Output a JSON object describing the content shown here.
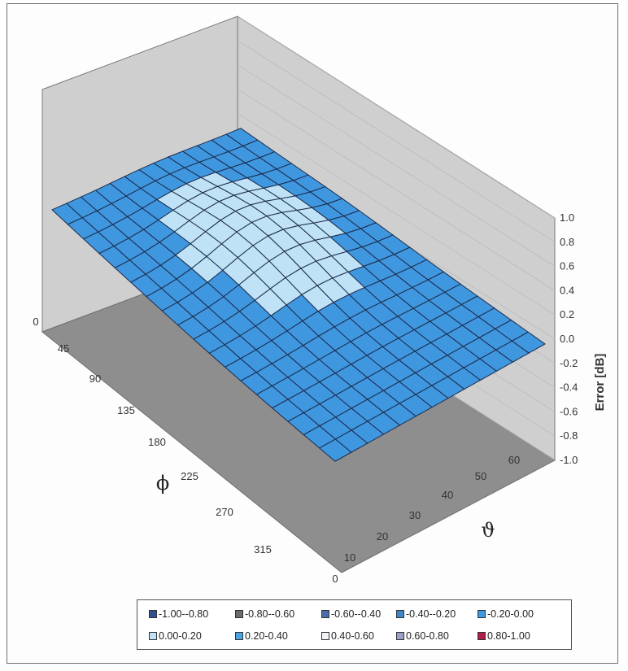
{
  "chart_data": {
    "type": "surface",
    "zlabel": "Error [dB]",
    "xlabel": "ϑ",
    "ylabel": "ϕ",
    "zlim": [
      -1.0,
      1.0
    ],
    "z_ticks": [
      "1.0",
      "0.8",
      "0.6",
      "0.4",
      "0.2",
      "0.0",
      "-0.2",
      "-0.4",
      "-0.6",
      "-0.8",
      "-1.0"
    ],
    "theta_ticks": [
      "0",
      "10",
      "20",
      "30",
      "40",
      "50",
      "60"
    ],
    "phi_ticks": [
      "0",
      "45",
      "90",
      "135",
      "180",
      "225",
      "270",
      "315"
    ],
    "theta": [
      0,
      60
    ],
    "phi": [
      0,
      360
    ],
    "legend": [
      {
        "label": "-1.00--0.80",
        "color": "#2f4f8f"
      },
      {
        "label": "-0.80--0.60",
        "color": "#6b6b6b"
      },
      {
        "label": "-0.60--0.40",
        "color": "#4a6fa8"
      },
      {
        "label": "-0.40--0.20",
        "color": "#3b86c8"
      },
      {
        "label": "-0.20-0.00",
        "color": "#3f97e0"
      },
      {
        "label": "0.00-0.20",
        "color": "#bfe2f7"
      },
      {
        "label": "0.20-0.40",
        "color": "#4aa4e3"
      },
      {
        "label": "0.40-0.60",
        "color": "#f2f2f8"
      },
      {
        "label": "0.60-0.80",
        "color": "#9aa0c8"
      },
      {
        "label": "0.80-1.00",
        "color": "#b01e4a"
      }
    ],
    "surface_description_values": {
      "positive_region_range": [
        0.0,
        0.2
      ],
      "negative_region_range": [
        -0.2,
        0.0
      ]
    }
  }
}
